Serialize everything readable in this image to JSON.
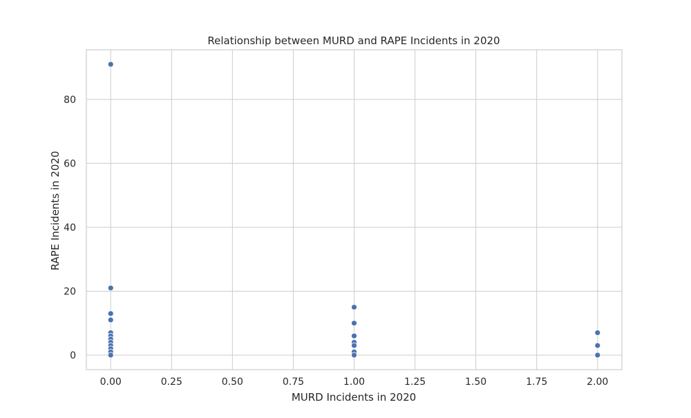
{
  "chart_data": {
    "type": "scatter",
    "title": "Relationship between MURD and RAPE Incidents in 2020",
    "xlabel": "MURD Incidents in 2020",
    "ylabel": "RAPE Incidents in 2020",
    "xlim": [
      -0.1,
      2.1
    ],
    "ylim": [
      -4.55,
      95.55
    ],
    "xticks": [
      0.0,
      0.25,
      0.5,
      0.75,
      1.0,
      1.25,
      1.5,
      1.75,
      2.0
    ],
    "xtick_labels": [
      "0.00",
      "0.25",
      "0.50",
      "0.75",
      "1.00",
      "1.25",
      "1.50",
      "1.75",
      "2.00"
    ],
    "yticks": [
      0,
      20,
      40,
      60,
      80
    ],
    "ytick_labels": [
      "0",
      "20",
      "40",
      "60",
      "80"
    ],
    "grid": true,
    "marker_color": "#4c72b0",
    "points": [
      {
        "x": 0,
        "y": 91
      },
      {
        "x": 0,
        "y": 21
      },
      {
        "x": 0,
        "y": 13
      },
      {
        "x": 0,
        "y": 11
      },
      {
        "x": 0,
        "y": 7
      },
      {
        "x": 0,
        "y": 6
      },
      {
        "x": 0,
        "y": 5
      },
      {
        "x": 0,
        "y": 4
      },
      {
        "x": 0,
        "y": 3
      },
      {
        "x": 0,
        "y": 2
      },
      {
        "x": 0,
        "y": 1
      },
      {
        "x": 0,
        "y": 0
      },
      {
        "x": 1,
        "y": 15
      },
      {
        "x": 1,
        "y": 10
      },
      {
        "x": 1,
        "y": 6
      },
      {
        "x": 1,
        "y": 4
      },
      {
        "x": 1,
        "y": 3
      },
      {
        "x": 1,
        "y": 1
      },
      {
        "x": 1,
        "y": 0
      },
      {
        "x": 2,
        "y": 7
      },
      {
        "x": 2,
        "y": 3
      },
      {
        "x": 2,
        "y": 0
      }
    ]
  }
}
